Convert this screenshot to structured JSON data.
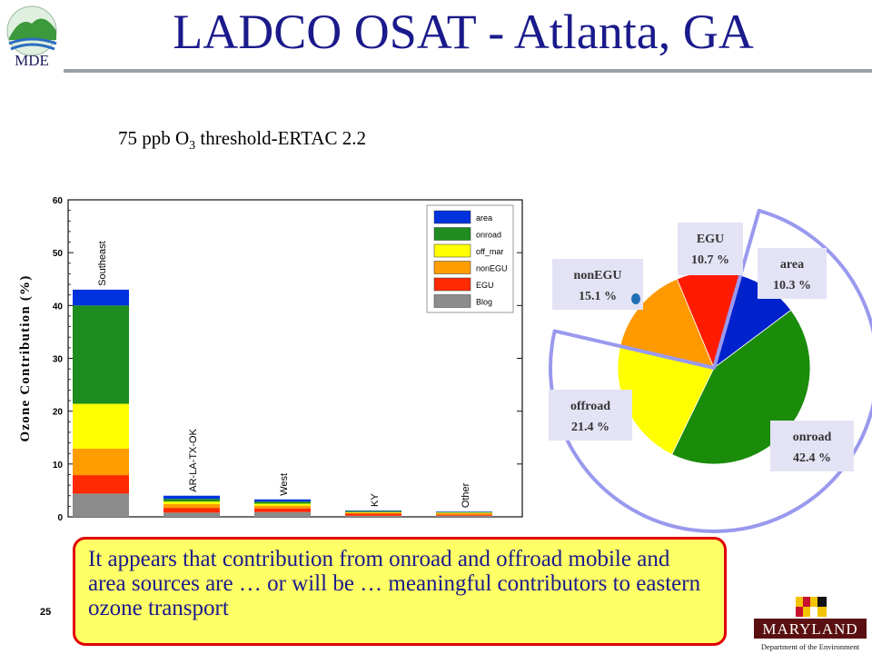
{
  "header": {
    "logo_text": "MDE",
    "title": "LADCO OSAT - Atlanta, GA"
  },
  "subtitle": {
    "prefix": "75 ppb O",
    "subscript": "3",
    "suffix": " threshold-ERTAC 2.2"
  },
  "chart_data": [
    {
      "type": "bar",
      "stacked": true,
      "ylabel": "Ozone Contribution (%)",
      "xlabel": "",
      "ylim": [
        0,
        60
      ],
      "yticks": [
        0,
        10,
        20,
        30,
        40,
        50,
        60
      ],
      "categories": [
        "Southeast",
        "AR-LA-TX-OK",
        "West",
        "KY",
        "Other"
      ],
      "legend_position": "top-right",
      "series": [
        {
          "name": "Blog",
          "color": "#8c8c8c",
          "values": [
            4.4,
            0.8,
            0.9,
            0.2,
            0.2
          ]
        },
        {
          "name": "EGU",
          "color": "#ff2a00",
          "values": [
            3.5,
            0.9,
            0.7,
            0.4,
            0.2
          ]
        },
        {
          "name": "nonEGU",
          "color": "#ff9c00",
          "values": [
            5.0,
            0.7,
            0.5,
            0.2,
            0.3
          ]
        },
        {
          "name": "off_mar",
          "color": "#ffff00",
          "values": [
            8.5,
            0.5,
            0.4,
            0.1,
            0.1
          ]
        },
        {
          "name": "onroad",
          "color": "#1e8c1e",
          "values": [
            18.6,
            0.5,
            0.4,
            0.2,
            0.1
          ]
        },
        {
          "name": "area",
          "color": "#0033dd",
          "values": [
            3.0,
            0.6,
            0.4,
            0.1,
            0.1
          ]
        }
      ],
      "legend_order": [
        "area",
        "onroad",
        "off_mar",
        "nonEGU",
        "EGU",
        "Blog"
      ]
    },
    {
      "type": "pie",
      "slices": [
        {
          "name": "area",
          "value": 10.3,
          "label": "10.3 %",
          "color": "#0022cc"
        },
        {
          "name": "onroad",
          "value": 42.4,
          "label": "42.4 %",
          "color": "#1a8c0a"
        },
        {
          "name": "offroad",
          "value": 21.4,
          "label": "21.4 %",
          "color": "#ffff00"
        },
        {
          "name": "nonEGU",
          "value": 15.1,
          "label": "15.1 %",
          "color": "#ff9900"
        },
        {
          "name": "EGU",
          "value": 10.7,
          "label": "10.7 %",
          "color": "#ff1a00"
        }
      ]
    }
  ],
  "callout": {
    "text": "It appears that contribution from onroad and offroad mobile and area sources are … or will be … meaningful contributors to eastern ozone transport"
  },
  "footer": {
    "page_number": "25",
    "logo_name": "MARYLAND",
    "logo_sub": "Department of the Environment"
  },
  "colors": {
    "title": "#1a1a8c",
    "callout_border": "#e00000",
    "callout_fill": "#ffff66",
    "pie_highlight": "#9999ee"
  }
}
